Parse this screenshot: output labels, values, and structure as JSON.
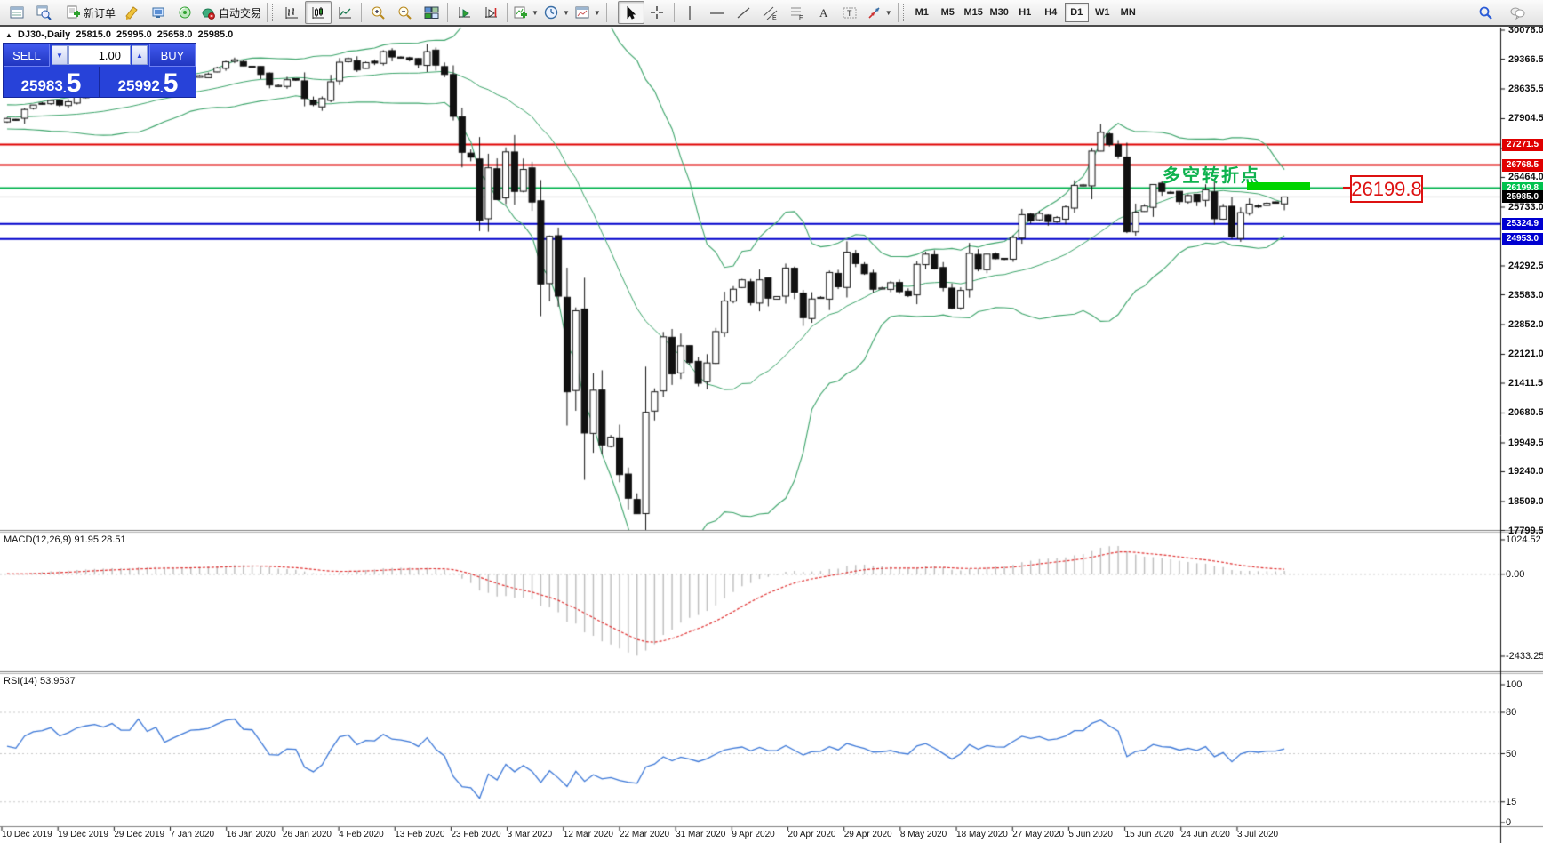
{
  "toolbar": {
    "items": [
      {
        "icon": "chart-window-icon"
      },
      {
        "icon": "data-window-icon"
      },
      {
        "sep": true
      },
      {
        "icon": "new-order-icon",
        "label": "新订单",
        "name": "new-order-button"
      },
      {
        "icon": "metaeditor-icon"
      },
      {
        "icon": "terminal-icon"
      },
      {
        "icon": "signals-icon"
      },
      {
        "icon": "autotrading-icon",
        "label": "自动交易",
        "name": "autotrading-button"
      },
      {
        "sep": true
      },
      {
        "handle": true
      },
      {
        "icon": "bar-chart-icon"
      },
      {
        "icon": "candlestick-icon",
        "pressed": true
      },
      {
        "icon": "line-chart-icon"
      },
      {
        "sep": true
      },
      {
        "icon": "zoom-in-icon"
      },
      {
        "icon": "zoom-out-icon"
      },
      {
        "icon": "tile-windows-icon"
      },
      {
        "sep": true
      },
      {
        "icon": "auto-scroll-icon"
      },
      {
        "icon": "chart-shift-icon"
      },
      {
        "sep": true
      },
      {
        "icon": "indicators-icon",
        "dropdown": true
      },
      {
        "icon": "periods-icon",
        "dropdown": true
      },
      {
        "icon": "templates-icon",
        "dropdown": true
      },
      {
        "sep": true
      },
      {
        "handle": true
      },
      {
        "icon": "cursor-icon",
        "pressed": true
      },
      {
        "icon": "crosshair-icon"
      },
      {
        "sep": true
      },
      {
        "icon": "vertical-line-icon"
      },
      {
        "icon": "horizontal-line-icon"
      },
      {
        "icon": "trendline-icon"
      },
      {
        "icon": "channel-icon"
      },
      {
        "icon": "fibonacci-icon"
      },
      {
        "icon": "text-icon"
      },
      {
        "icon": "label-icon"
      },
      {
        "icon": "arrows-icon",
        "dropdown": true
      },
      {
        "sep": true
      },
      {
        "handle": true
      }
    ],
    "timeframes": [
      "M1",
      "M5",
      "M15",
      "M30",
      "H1",
      "H4",
      "D1",
      "W1",
      "MN"
    ],
    "active_timeframe": "D1",
    "right_icons": [
      "search-icon",
      "chat-icon"
    ]
  },
  "chart": {
    "title_symbol": "DJ30-,Daily",
    "ohlc_text": {
      "open": "25815.0",
      "high": "25995.0",
      "low": "25658.0",
      "close": "25985.0"
    },
    "trade_panel": {
      "sell_label": "SELL",
      "buy_label": "BUY",
      "volume": "1.00",
      "sell_price_int": "25983",
      "sell_price_frac": "5",
      "buy_price_int": "25992",
      "buy_price_frac": "5"
    },
    "annotation_text": "多空转折点",
    "big_price_label": "26199.8",
    "price_ticks": [
      30076.0,
      29366.5,
      28635.5,
      27904.5,
      27173.5,
      26464.0,
      25733.0,
      24292.5,
      23583.0,
      22852.0,
      22121.0,
      21411.5,
      20680.5,
      19949.5,
      19240.0,
      18509.0,
      17799.5
    ],
    "price_labels": [
      {
        "text": "27271.5",
        "value": 27271.5,
        "color": "#e00000"
      },
      {
        "text": "26768.5",
        "value": 26768.5,
        "color": "#e00000"
      },
      {
        "text": "26199.8",
        "value": 26199.8,
        "color": "#00c24e"
      },
      {
        "text": "25985.0",
        "value": 25985.0,
        "color": "#000000"
      },
      {
        "text": "25324.9",
        "value": 25324.9,
        "color": "#0000d0"
      },
      {
        "text": "24953.0",
        "value": 24953.0,
        "color": "#0000d0"
      }
    ]
  },
  "macd_panel": {
    "label": "MACD(12,26,9) 91.95 28.51",
    "ticks": [
      {
        "value": 1024.52,
        "text": "1024.52"
      },
      {
        "value": 0,
        "text": "0.00"
      },
      {
        "value": -2433.25,
        "text": "-2433.25"
      }
    ]
  },
  "rsi_panel": {
    "label": "RSI(14) 53.9537",
    "ticks": [
      {
        "value": 100,
        "text": "100"
      },
      {
        "value": 80,
        "text": "80"
      },
      {
        "value": 50,
        "text": "50"
      },
      {
        "value": 15,
        "text": "15"
      },
      {
        "value": 0,
        "text": "0"
      }
    ]
  },
  "dates": [
    "10 Dec 2019",
    "19 Dec 2019",
    "29 Dec 2019",
    "7 Jan 2020",
    "16 Jan 2020",
    "26 Jan 2020",
    "4 Feb 2020",
    "13 Feb 2020",
    "23 Feb 2020",
    "3 Mar 2020",
    "12 Mar 2020",
    "22 Mar 2020",
    "31 Mar 2020",
    "9 Apr 2020",
    "20 Apr 2020",
    "29 Apr 2020",
    "8 May 2020",
    "18 May 2020",
    "27 May 2020",
    "5 Jun 2020",
    "15 Jun 2020",
    "24 Jun 2020",
    "3 Jul 2020"
  ],
  "chart_data": {
    "type": "candlestick",
    "symbol": "DJ30-",
    "timeframe": "Daily",
    "title": "DJ30-,Daily 25815.0 25995.0 25658.0 25985.0",
    "bid": 25983.5,
    "ask": 25992.5,
    "last_candle": {
      "open": 25815.0,
      "high": 25995.0,
      "low": 25658.0,
      "close": 25985.0
    },
    "price_axis_range": [
      17799.5,
      30076.0
    ],
    "warmup_closes": [
      27700,
      27780,
      27850,
      27690,
      27780,
      27880,
      27940,
      28000,
      28090,
      28050,
      28120,
      28060,
      28130,
      28160,
      28050,
      28110,
      28000,
      27850,
      27780,
      27820,
      27900,
      27690,
      27650,
      27780,
      27880
    ],
    "closes": [
      27910,
      27880,
      28130,
      28240,
      28270,
      28350,
      28240,
      28320,
      28450,
      28510,
      28550,
      28520,
      28620,
      28540,
      28540,
      28870,
      28700,
      28830,
      28580,
      28700,
      28820,
      28940,
      28960,
      29000,
      29150,
      29300,
      29350,
      29200,
      29190,
      28990,
      28730,
      28720,
      28860,
      28850,
      28400,
      28250,
      28400,
      28810,
      29290,
      29380,
      29100,
      29280,
      29270,
      29550,
      29420,
      29400,
      29350,
      29230,
      29550,
      29220,
      28990,
      27960,
      27080,
      26960,
      25410,
      26700,
      25920,
      27090,
      26120,
      26660,
      25860,
      23850,
      25020,
      23550,
      21200,
      23190,
      20190,
      21240,
      19900,
      20090,
      19170,
      18590,
      18210,
      20700,
      21200,
      22550,
      21640,
      22330,
      21920,
      21410,
      21910,
      22680,
      23430,
      23720,
      23950,
      23390,
      23950,
      23500,
      23540,
      24240,
      23650,
      23020,
      23480,
      23520,
      24130,
      23780,
      24630,
      24350,
      24100,
      23720,
      23750,
      23880,
      23660,
      23560,
      24330,
      24580,
      24220,
      23760,
      23250,
      23690,
      24600,
      24210,
      24580,
      24470,
      24460,
      24990,
      25550,
      25400,
      25580,
      25380,
      25480,
      25740,
      26270,
      26280,
      27110,
      27570,
      27270,
      26990,
      25130,
      25610,
      25760,
      26290,
      26120,
      26080,
      25870,
      26020,
      25870,
      26160,
      25450,
      25750,
      25010,
      25600,
      25810,
      25740,
      25830,
      25830,
      25985
    ],
    "indicators": [
      {
        "name": "Bollinger Bands",
        "period": 20,
        "deviation": 2,
        "color": "#3da56b"
      },
      {
        "name": "MACD",
        "params": [
          12,
          26,
          9
        ],
        "value": 91.95,
        "signal_value": 28.51,
        "axis_range": [
          -2433.25,
          1024.52
        ],
        "histogram_color": "#bdbdbd",
        "signal_color": "#e03232"
      },
      {
        "name": "RSI",
        "period": 14,
        "value": 53.9537,
        "axis_range": [
          0,
          100
        ],
        "levels": [
          15,
          50,
          80
        ],
        "color": "#3c78d8"
      }
    ],
    "horizontal_lines": [
      {
        "value": 27271.5,
        "color": "#e00000",
        "width": 2
      },
      {
        "value": 26768.5,
        "color": "#e00000",
        "width": 2
      },
      {
        "value": 26199.8,
        "color": "#00b34d",
        "width": 2
      },
      {
        "value": 25985.0,
        "color": "#c0c0c0",
        "width": 1
      },
      {
        "value": 25324.9,
        "color": "#0000cc",
        "width": 2
      },
      {
        "value": 24953.0,
        "color": "#0000cc",
        "width": 2
      }
    ]
  }
}
